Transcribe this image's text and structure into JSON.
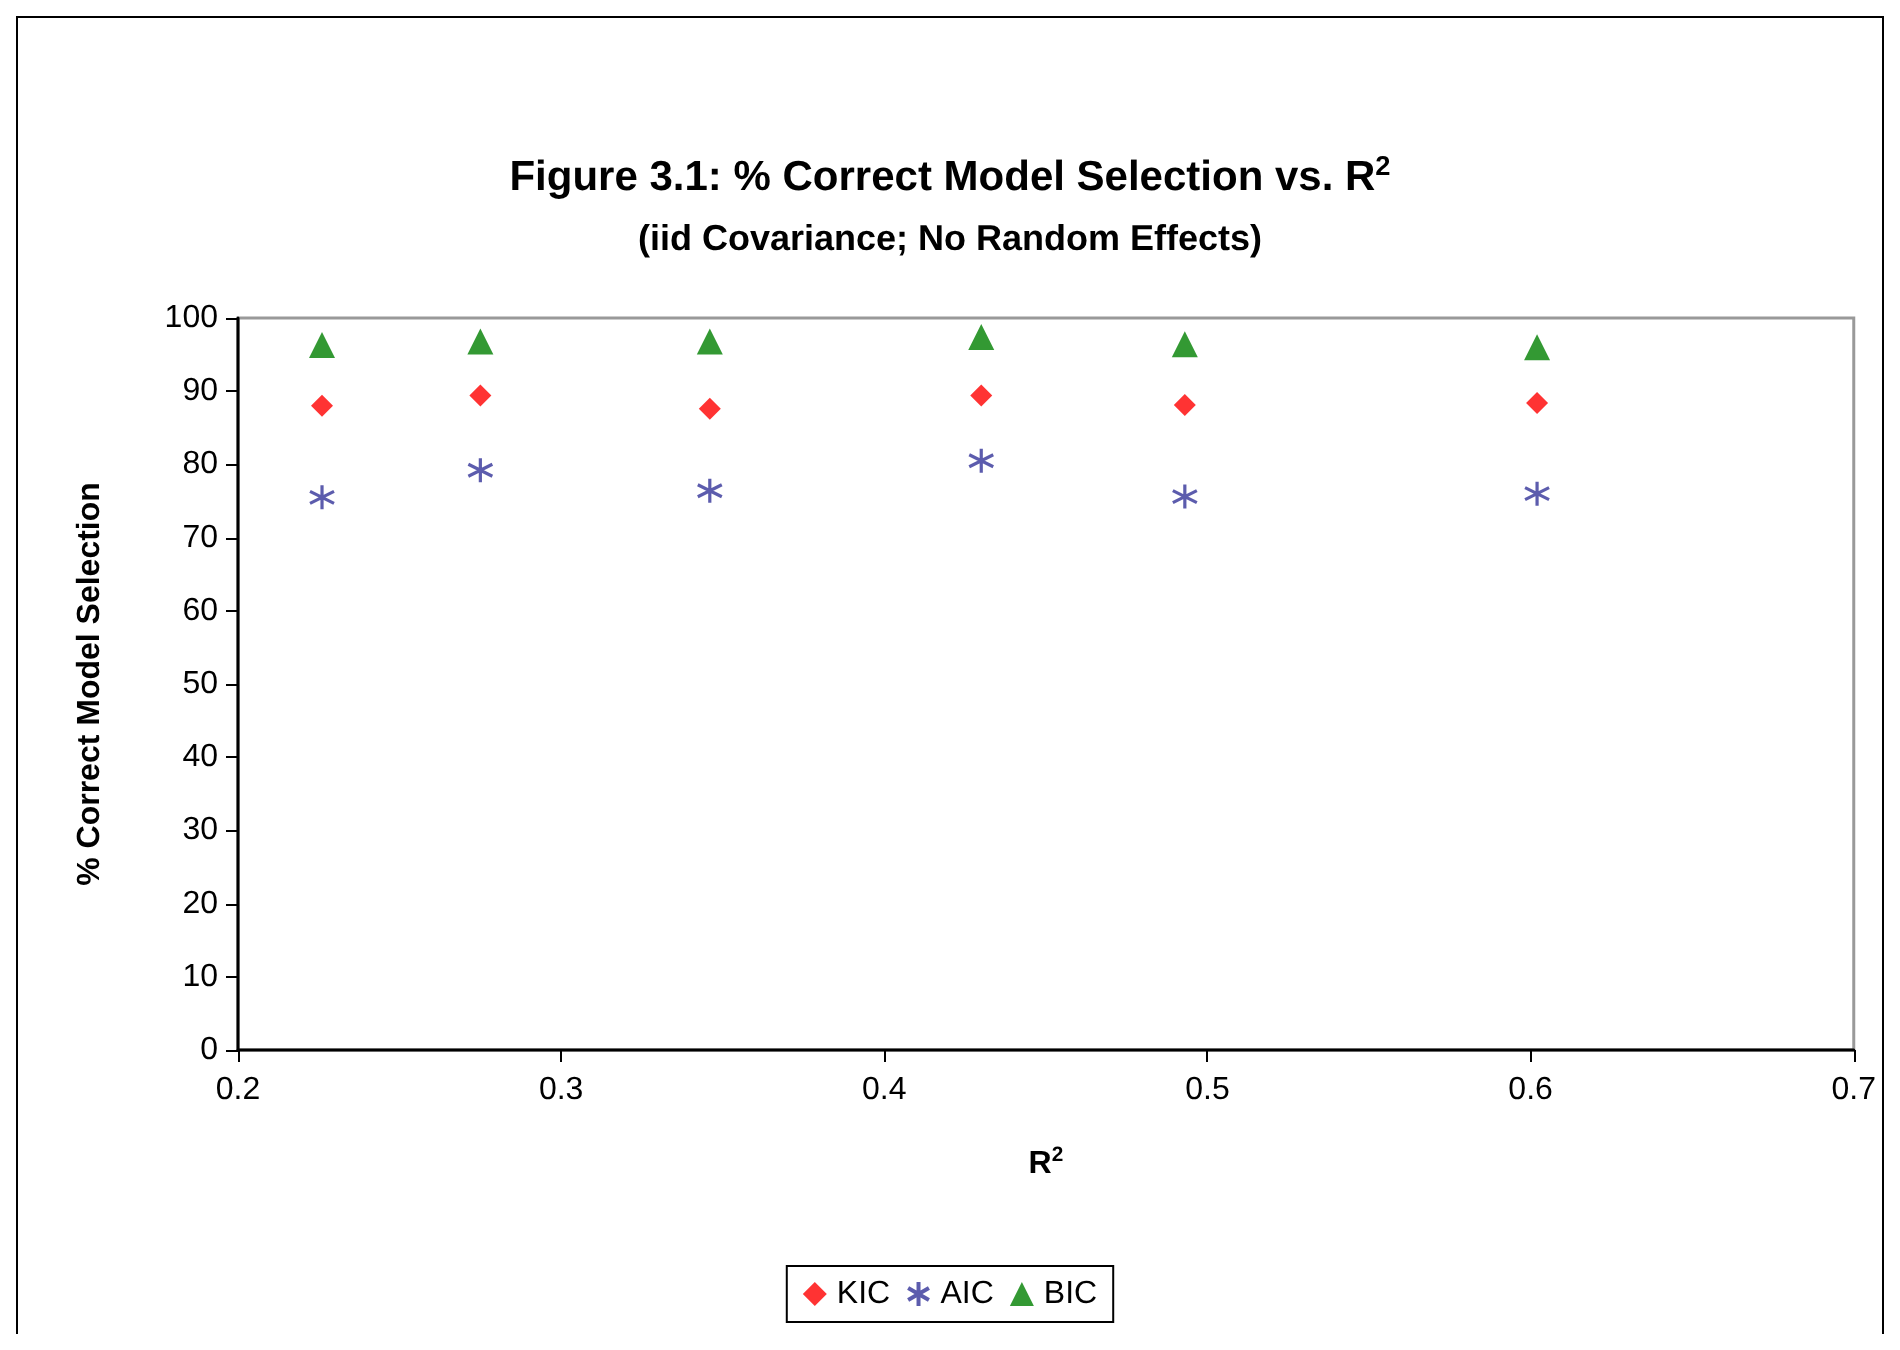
{
  "chart_data": {
    "type": "scatter",
    "title": "Figure 3.1: % Correct Model Selection vs. R$^{2}$",
    "subtitle": "(iid Covariance; No Random Effects)",
    "xlabel": "R$^{2}$",
    "ylabel": "% Correct Model Selection",
    "x": [
      0.226,
      0.275,
      0.346,
      0.43,
      0.493,
      0.602
    ],
    "series": [
      {
        "name": "KIC",
        "color": "#ff0000",
        "marker": "diamond",
        "values": [
          88.0,
          89.4,
          87.6,
          89.4,
          88.1,
          88.4
        ]
      },
      {
        "name": "AIC",
        "color": "#333399",
        "marker": "cross",
        "values": [
          75.5,
          79.2,
          76.4,
          80.5,
          75.6,
          76.0
        ]
      },
      {
        "name": "BIC",
        "color": "#008000",
        "marker": "triangle",
        "values": [
          96.3,
          96.8,
          96.8,
          97.4,
          96.4,
          96.0
        ]
      }
    ],
    "xlim": [
      0.2,
      0.7
    ],
    "xticks": [
      0.2,
      0.3,
      0.4,
      0.5,
      0.6,
      0.7
    ],
    "ylim": [
      0,
      100
    ],
    "yticks": [
      0,
      10,
      20,
      30,
      40,
      50,
      60,
      70,
      80,
      90,
      100
    ],
    "grid": false,
    "legend": "bottom"
  }
}
